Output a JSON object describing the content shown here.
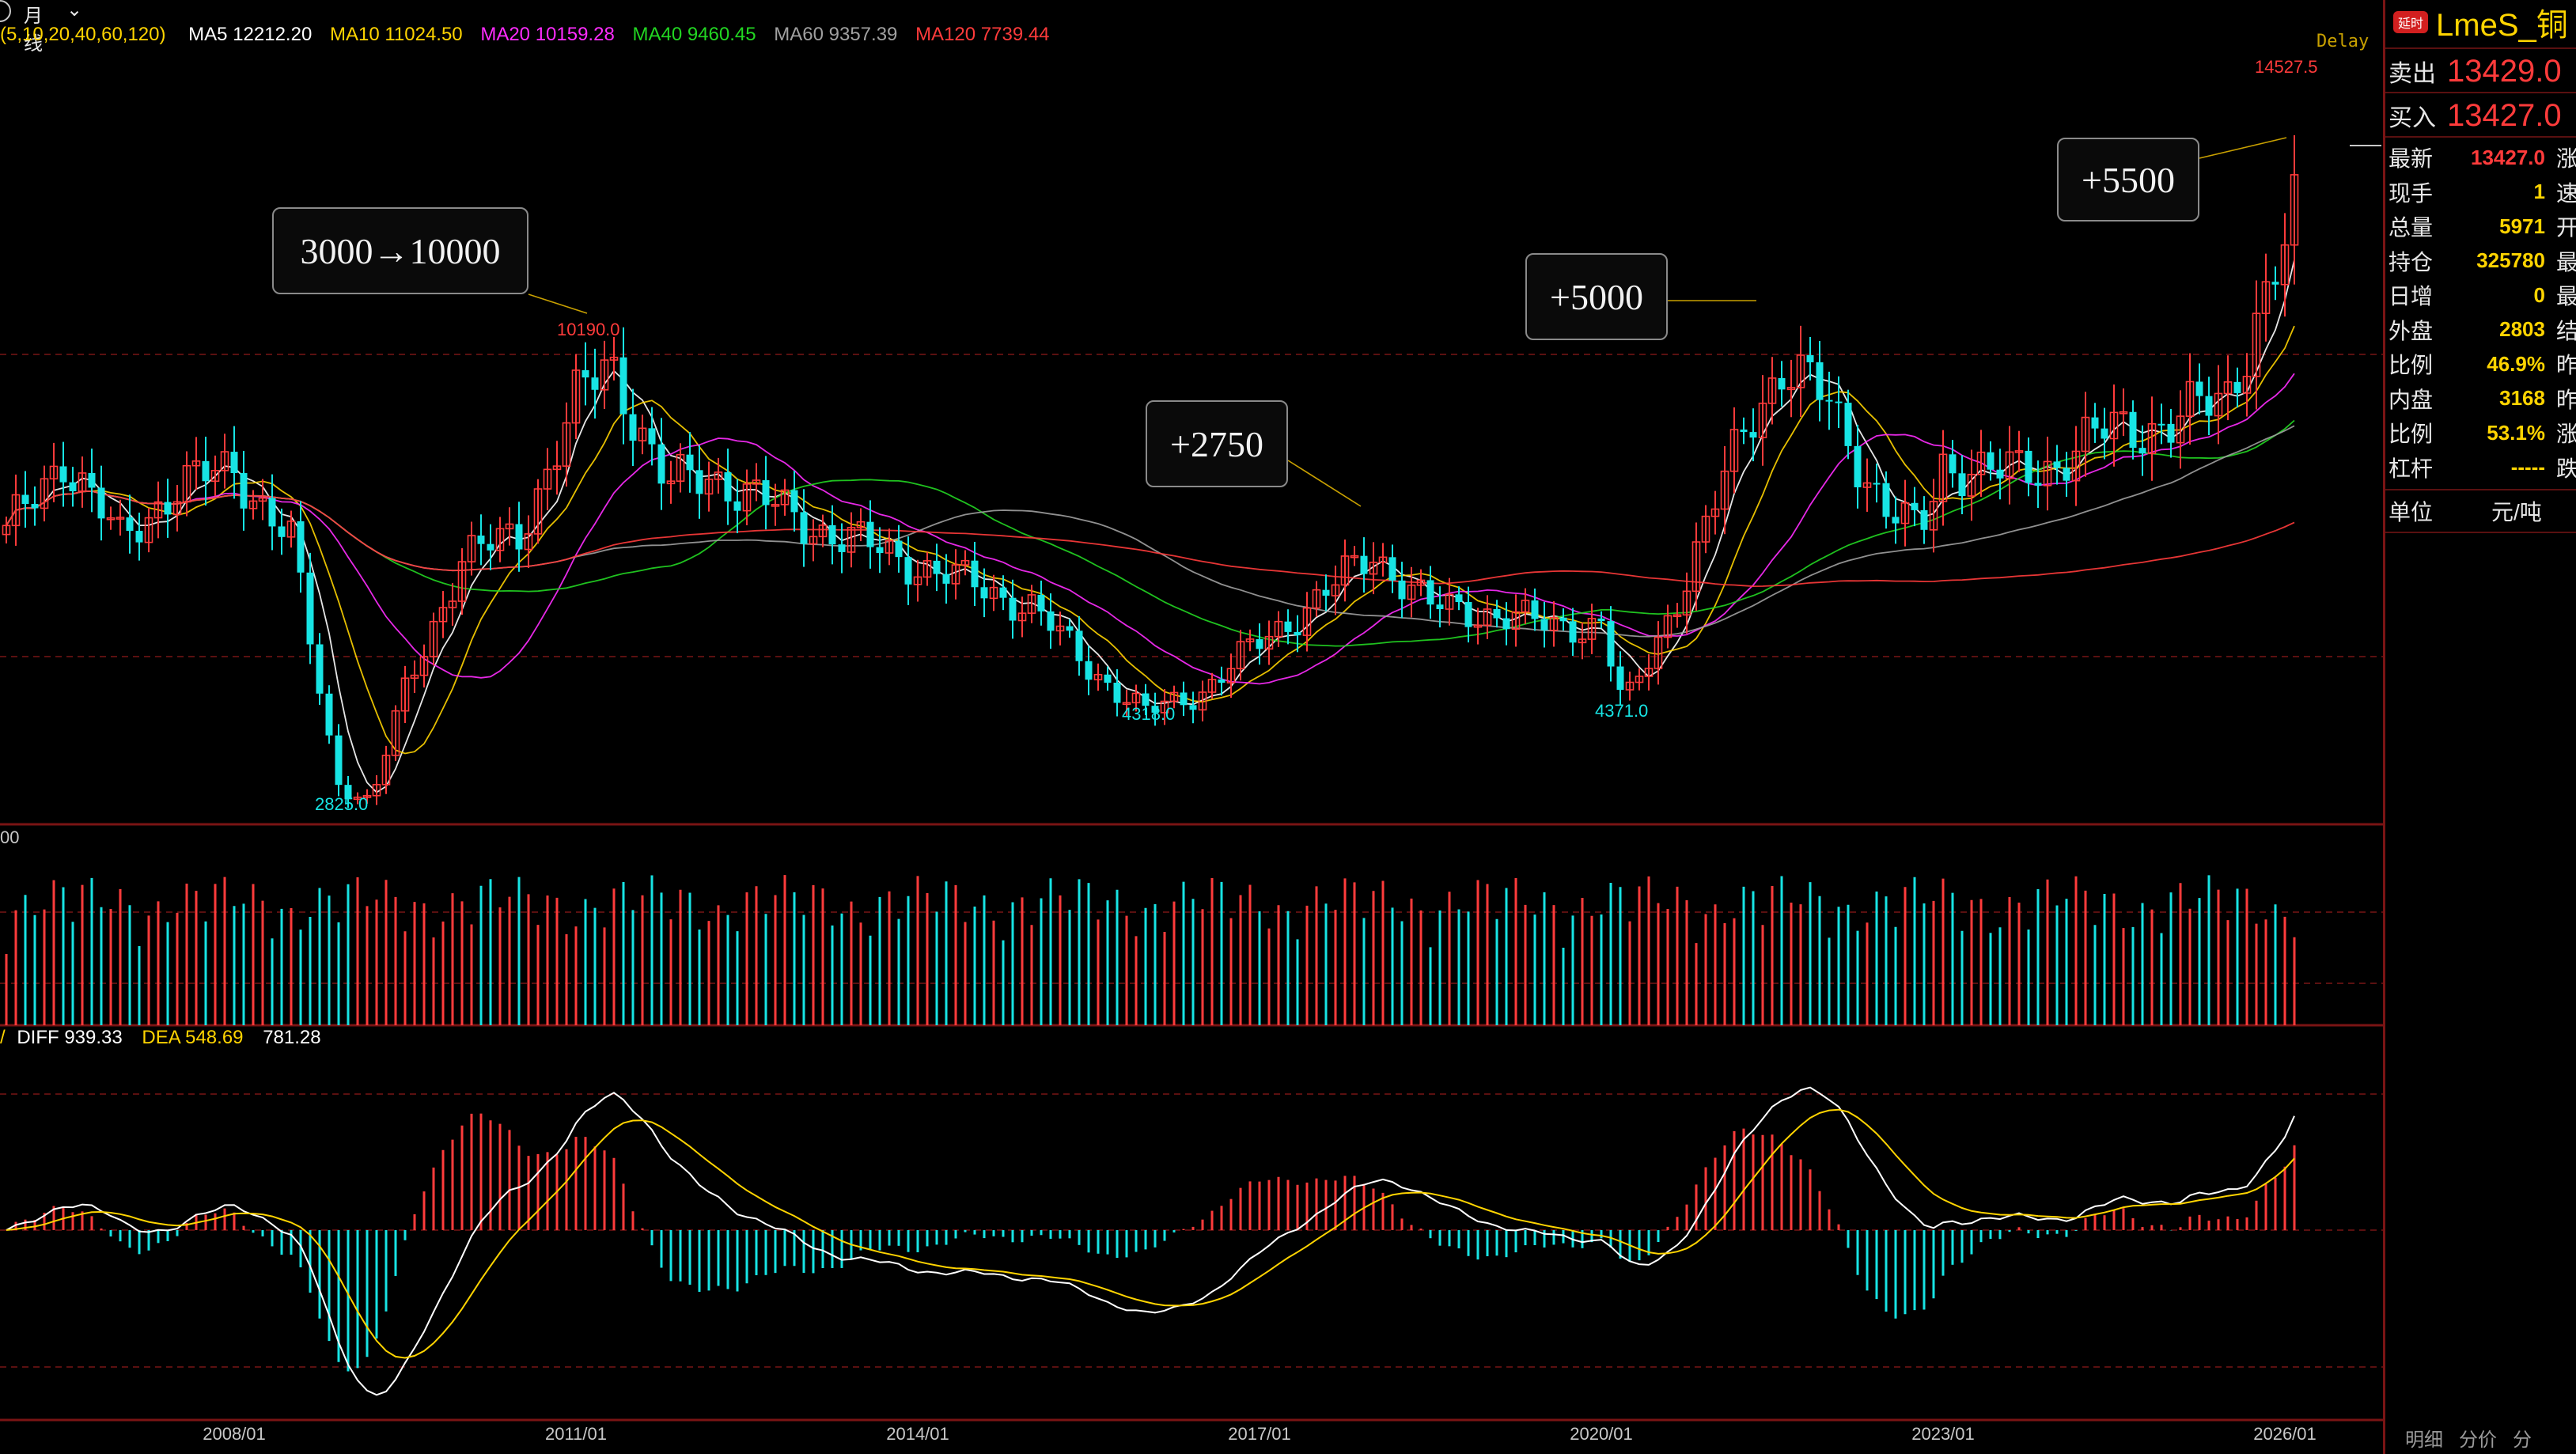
{
  "toolbar": {
    "period": "月线",
    "period_icon": "chevron-down-icon",
    "ma_params": "(5,10,20,40,60,120)"
  },
  "ma_legend": [
    {
      "label": "MA5 12212.20",
      "color": "#ffffff"
    },
    {
      "label": "MA10 11024.50",
      "color": "#ffd400"
    },
    {
      "label": "MA20 10159.28",
      "color": "#ff2cff"
    },
    {
      "label": "MA40 9460.45",
      "color": "#22d622"
    },
    {
      "label": "MA60 9357.39",
      "color": "#a0a0a0"
    },
    {
      "label": "MA120 7739.44",
      "color": "#ff3b3b"
    }
  ],
  "delay_label": "Delay",
  "annotations": [
    "3000→10000",
    "+5000",
    "+2750",
    "+5500"
  ],
  "price_marks": {
    "high_2011": "10190.0",
    "low_2009": "2825.0",
    "low_2016": "4318.0",
    "low_2020": "4371.0",
    "high_2026": "14527.5"
  },
  "volume_axis_fragment": "00",
  "macd": {
    "diff": "DIFF 939.33",
    "dea": "DEA 548.69",
    "macd": "781.28"
  },
  "x_dates": [
    "2008/01",
    "2011/01",
    "2014/01",
    "2017/01",
    "2020/01",
    "2023/01",
    "2026/01"
  ],
  "colors": {
    "up": "#ff3b3b",
    "down": "#17e4e4",
    "background": "#000000",
    "grid": "#7a1414",
    "symbol": "#ffd400"
  },
  "chart_data": {
    "type": "line",
    "x": [
      2006.0,
      2006.5,
      2007.0,
      2007.5,
      2008.0,
      2008.5,
      2008.9,
      2009.2,
      2009.5,
      2010.0,
      2010.5,
      2011.0,
      2011.3,
      2011.8,
      2012.2,
      2013.0,
      2014.0,
      2015.0,
      2015.5,
      2016.0,
      2016.5,
      2017.0,
      2017.5,
      2018.0,
      2018.5,
      2019.0,
      2019.5,
      2020.0,
      2020.2,
      2020.8,
      2021.3,
      2021.6,
      2022.0,
      2022.5,
      2022.8,
      2023.0,
      2023.5,
      2024.0,
      2024.5,
      2025.0,
      2025.5,
      2026.0,
      2026.2
    ],
    "series": [
      {
        "values": [
          7300,
          8600,
          7200,
          8100,
          8400,
          7200,
          3200,
          2825,
          4700,
          6900,
          7300,
          9500,
          10190,
          8100,
          8300,
          7500,
          6800,
          6100,
          5100,
          4318,
          4700,
          5500,
          6200,
          7000,
          6100,
          6000,
          5800,
          5800,
          4371,
          6800,
          9300,
          10100,
          9500,
          7700,
          7300,
          8500,
          8300,
          8500,
          9100,
          9100,
          9700,
          12000,
          13427
        ]
      }
    ],
    "ylim": [
      2500,
      15000
    ],
    "bar_annotations": [
      {
        "text": "3000→10000"
      },
      {
        "text": "+2750"
      },
      {
        "text": "+5000"
      },
      {
        "text": "+5500"
      }
    ],
    "macd": {
      "diff": 939.33,
      "dea": 548.69,
      "macd": 781.28
    }
  },
  "panel": {
    "delay_badge": "延时",
    "symbol": "LmeS_铜",
    "sell_label": "卖出",
    "sell_value": "13429.0",
    "buy_label": "买入",
    "buy_value": "13427.0",
    "stats": [
      {
        "label": "最新",
        "value": "13427.0",
        "color": "#ff3b3b",
        "tail": "涨"
      },
      {
        "label": "现手",
        "value": "1",
        "color": "#ffd400",
        "tail": "速"
      },
      {
        "label": "总量",
        "value": "5971",
        "color": "#ffd400",
        "tail": "开"
      },
      {
        "label": "持仓",
        "value": "325780",
        "color": "#ffd400",
        "tail": "最"
      },
      {
        "label": "日增",
        "value": "0",
        "color": "#ffd400",
        "tail": "最"
      },
      {
        "label": "外盘",
        "value": "2803",
        "color": "#ffd400",
        "tail": "结"
      },
      {
        "label": "比例",
        "value": "46.9%",
        "color": "#ffd400",
        "tail": "昨"
      },
      {
        "label": "内盘",
        "value": "3168",
        "color": "#ffd400",
        "tail": "昨"
      },
      {
        "label": "比例",
        "value": "53.1%",
        "color": "#ffd400",
        "tail": "涨"
      },
      {
        "label": "杠杆",
        "value": "-----",
        "color": "#ffd400",
        "tail": "跌"
      }
    ],
    "unit_label": "单位",
    "unit_value": "元/吨"
  },
  "bottom_tabs": [
    "明细",
    "分价",
    "分"
  ]
}
